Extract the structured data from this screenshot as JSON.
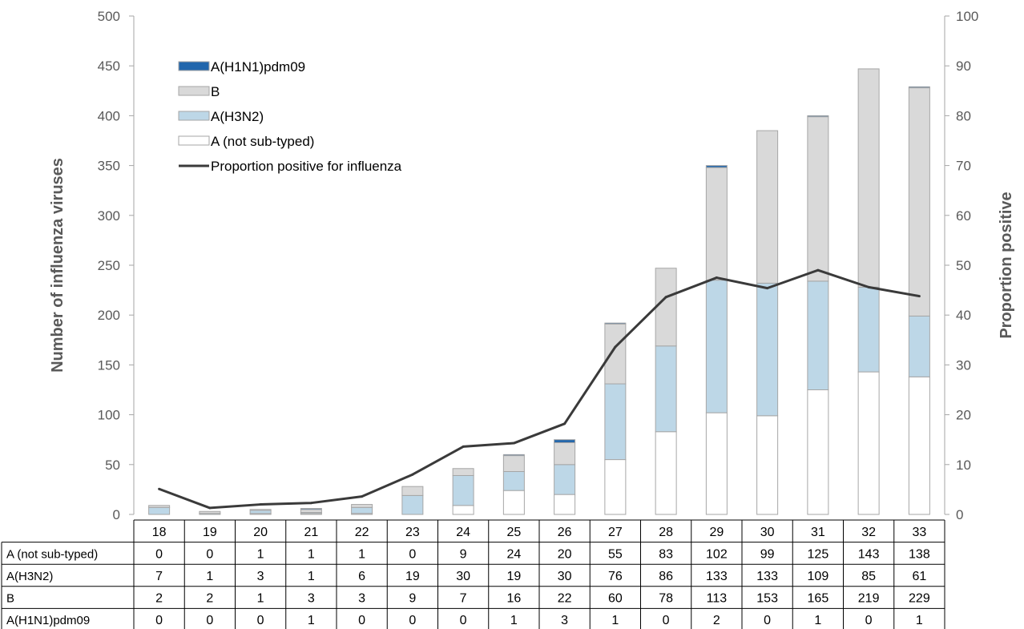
{
  "chart_data": {
    "type": "bar",
    "stacked": true,
    "categories": [
      "18",
      "19",
      "20",
      "21",
      "22",
      "23",
      "24",
      "25",
      "26",
      "27",
      "28",
      "29",
      "30",
      "31",
      "32",
      "33"
    ],
    "series": [
      {
        "name": "A (not sub-typed)",
        "values": [
          0,
          0,
          1,
          1,
          1,
          0,
          9,
          24,
          20,
          55,
          83,
          102,
          99,
          125,
          143,
          138
        ],
        "color": "#ffffff"
      },
      {
        "name": "A(H3N2)",
        "values": [
          7,
          1,
          3,
          1,
          6,
          19,
          30,
          19,
          30,
          76,
          86,
          133,
          133,
          109,
          85,
          61
        ],
        "color": "#bdd7e7"
      },
      {
        "name": "B",
        "values": [
          2,
          2,
          1,
          3,
          3,
          9,
          7,
          16,
          22,
          60,
          78,
          113,
          153,
          165,
          219,
          229
        ],
        "color": "#d9d9d9"
      },
      {
        "name": "A(H1N1)pdm09",
        "values": [
          0,
          0,
          0,
          1,
          0,
          0,
          0,
          1,
          3,
          1,
          0,
          2,
          0,
          1,
          0,
          1
        ],
        "color": "#2166ac"
      }
    ],
    "line_series": {
      "name": "Proportion positive for influenza",
      "values": [
        5.1,
        1.3,
        2.0,
        2.3,
        3.6,
        8.0,
        13.6,
        14.3,
        18.2,
        33.6,
        43.6,
        47.5,
        45.4,
        49.0,
        45.6,
        43.8
      ],
      "color": "#3a3a3a",
      "axis": "right"
    },
    "legend_order": [
      "A(H1N1)pdm09",
      "B",
      "A(H3N2)",
      "A (not sub-typed)",
      "Proportion positive for influenza"
    ],
    "legend_position": "top-left",
    "ylabel": "Number of influenza viruses",
    "ylabel_right": "Proportion positive",
    "ylim": [
      0,
      500
    ],
    "ylim_right": [
      0,
      100
    ],
    "yticks": [
      "0",
      "50",
      "100",
      "150",
      "200",
      "250",
      "300",
      "350",
      "400",
      "450",
      "500"
    ],
    "yticks_right": [
      "0",
      "10",
      "20",
      "30",
      "40",
      "50",
      "60",
      "70",
      "80",
      "90",
      "100"
    ],
    "grid": false,
    "data_table": true,
    "table_row_order": [
      "A (not sub-typed)",
      "A(H3N2)",
      "B",
      "A(H1N1)pdm09"
    ]
  }
}
